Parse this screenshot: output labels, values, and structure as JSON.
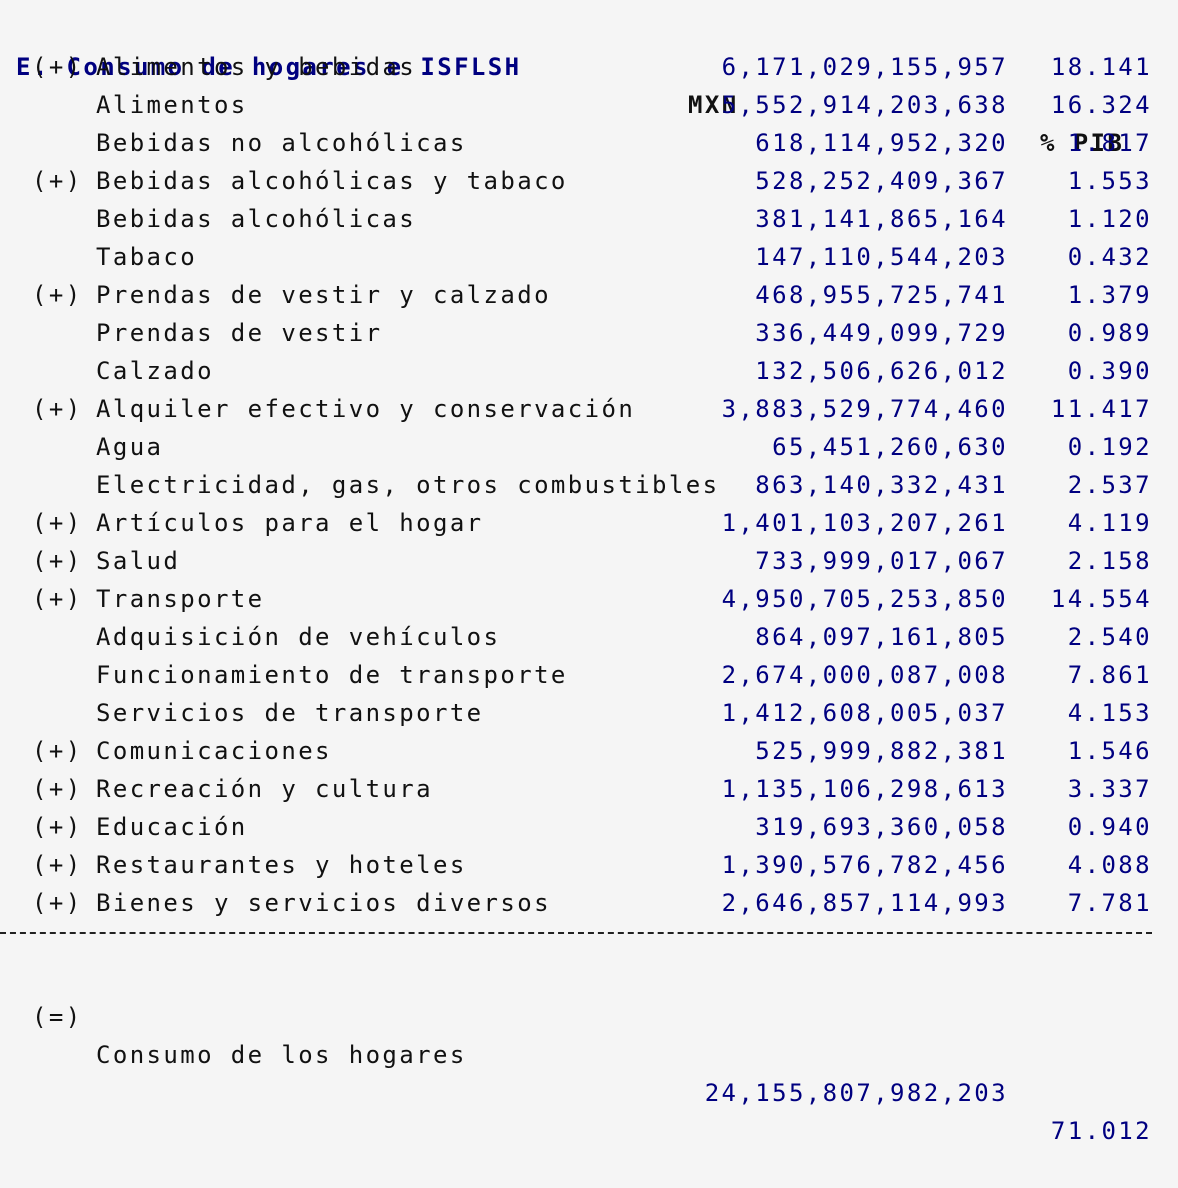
{
  "header": {
    "title": "E. Consumo de hogares e ISFLSH",
    "col_mxn": "MXN",
    "col_pib": "% PIB"
  },
  "rows": [
    {
      "prefix": "(+)",
      "label": "Alimentos y bebidas",
      "mxn": "6,171,029,155,957",
      "pib": "18.141"
    },
    {
      "prefix": "",
      "label": "Alimentos",
      "mxn": "5,552,914,203,638",
      "pib": "16.324"
    },
    {
      "prefix": "",
      "label": "Bebidas no alcohólicas",
      "mxn": "618,114,952,320",
      "pib": "1.817"
    },
    {
      "prefix": "(+)",
      "label": "Bebidas alcohólicas y tabaco",
      "mxn": "528,252,409,367",
      "pib": "1.553"
    },
    {
      "prefix": "",
      "label": "Bebidas alcohólicas",
      "mxn": "381,141,865,164",
      "pib": "1.120"
    },
    {
      "prefix": "",
      "label": "Tabaco",
      "mxn": "147,110,544,203",
      "pib": "0.432"
    },
    {
      "prefix": "(+)",
      "label": "Prendas de vestir y calzado",
      "mxn": "468,955,725,741",
      "pib": "1.379"
    },
    {
      "prefix": "",
      "label": "Prendas de vestir",
      "mxn": "336,449,099,729",
      "pib": "0.989"
    },
    {
      "prefix": "",
      "label": "Calzado",
      "mxn": "132,506,626,012",
      "pib": "0.390"
    },
    {
      "prefix": "(+)",
      "label": "Alquiler efectivo y conservación",
      "mxn": "3,883,529,774,460",
      "pib": "11.417"
    },
    {
      "prefix": "",
      "label": "Agua",
      "mxn": "65,451,260,630",
      "pib": "0.192"
    },
    {
      "prefix": "",
      "label": "Electricidad, gas, otros combustibles",
      "mxn": "863,140,332,431",
      "pib": "2.537"
    },
    {
      "prefix": "(+)",
      "label": "Artículos para el hogar",
      "mxn": "1,401,103,207,261",
      "pib": "4.119"
    },
    {
      "prefix": "(+)",
      "label": "Salud",
      "mxn": "733,999,017,067",
      "pib": "2.158"
    },
    {
      "prefix": "(+)",
      "label": "Transporte",
      "mxn": "4,950,705,253,850",
      "pib": "14.554"
    },
    {
      "prefix": "",
      "label": "Adquisición de vehículos",
      "mxn": "864,097,161,805",
      "pib": "2.540"
    },
    {
      "prefix": "",
      "label": "Funcionamiento de transporte",
      "mxn": "2,674,000,087,008",
      "pib": "7.861"
    },
    {
      "prefix": "",
      "label": "Servicios de transporte",
      "mxn": "1,412,608,005,037",
      "pib": "4.153"
    },
    {
      "prefix": "(+)",
      "label": "Comunicaciones",
      "mxn": "525,999,882,381",
      "pib": "1.546"
    },
    {
      "prefix": "(+)",
      "label": "Recreación y cultura",
      "mxn": "1,135,106,298,613",
      "pib": "3.337"
    },
    {
      "prefix": "(+)",
      "label": "Educación",
      "mxn": "319,693,360,058",
      "pib": "0.940"
    },
    {
      "prefix": "(+)",
      "label": "Restaurantes y hoteles",
      "mxn": "1,390,576,782,456",
      "pib": "4.088"
    },
    {
      "prefix": "(+)",
      "label": "Bienes y servicios diversos",
      "mxn": "2,646,857,114,993",
      "pib": "7.781"
    }
  ],
  "total": {
    "prefix": "(=)",
    "label": "Consumo de los hogares",
    "mxn": "24,155,807,982,203",
    "pib": "71.012"
  }
}
